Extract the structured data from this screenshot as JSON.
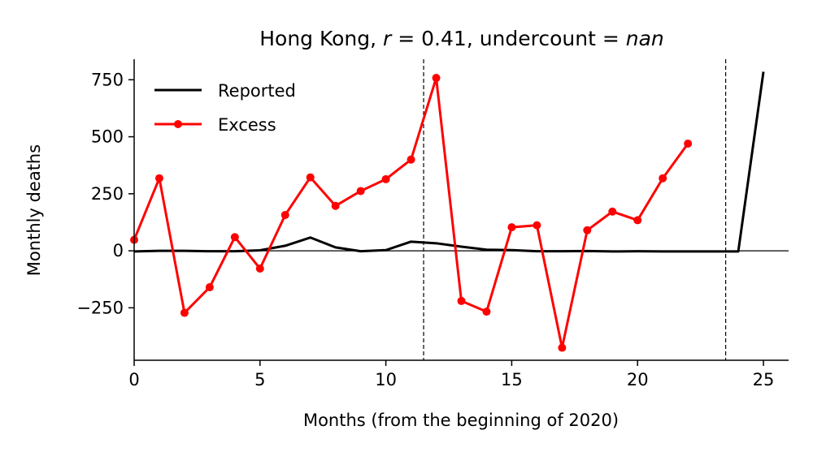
{
  "chart_data": {
    "type": "line",
    "title_parts": [
      {
        "text": "Hong Kong, ",
        "italic": false
      },
      {
        "text": "r",
        "italic": true
      },
      {
        "text": " = 0.41, undercount = ",
        "italic": false
      },
      {
        "text": "nan",
        "italic": true
      }
    ],
    "xlabel": "Months (from the beginning of 2020)",
    "ylabel": "Monthly deaths",
    "xlim": [
      0,
      26
    ],
    "ylim": [
      -480,
      840
    ],
    "xticks": [
      0,
      5,
      10,
      15,
      20,
      25
    ],
    "yticks": [
      -250,
      0,
      250,
      500,
      750
    ],
    "ytick_labels": [
      "−250",
      "0",
      "250",
      "500",
      "750"
    ],
    "zero_line": true,
    "vlines": [
      11.5,
      23.5
    ],
    "legend_position": "top-left",
    "series": [
      {
        "name": "Reported",
        "color": "#000000",
        "marker": false,
        "x": [
          0,
          1,
          2,
          3,
          4,
          5,
          6,
          7,
          8,
          9,
          10,
          11,
          12,
          13,
          14,
          15,
          16,
          17,
          18,
          19,
          20,
          21,
          22,
          23,
          24,
          25
        ],
        "y": [
          -3,
          0,
          0,
          -2,
          -2,
          2,
          22,
          58,
          15,
          -2,
          3,
          40,
          33,
          18,
          5,
          3,
          -2,
          -2,
          -1,
          -3,
          -2,
          -3,
          -3,
          -3,
          -3,
          785
        ]
      },
      {
        "name": "Excess",
        "color": "#ff0000",
        "marker": true,
        "x": [
          0,
          1,
          2,
          3,
          4,
          5,
          6,
          7,
          8,
          9,
          10,
          11,
          12,
          13,
          14,
          15,
          16,
          17,
          18,
          19,
          20,
          21,
          22
        ],
        "y": [
          48,
          318,
          -272,
          -160,
          60,
          -78,
          157,
          322,
          197,
          262,
          314,
          400,
          758,
          -220,
          -267,
          103,
          112,
          -425,
          90,
          172,
          134,
          318,
          470
        ]
      }
    ]
  }
}
